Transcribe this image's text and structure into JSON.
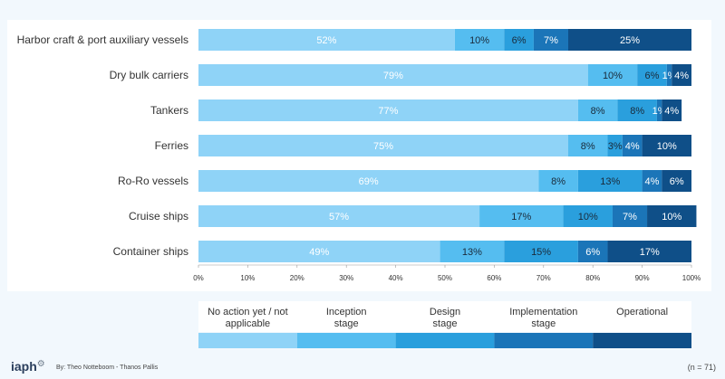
{
  "chart_data": {
    "type": "bar",
    "orientation": "horizontal",
    "stacked": true,
    "title": "",
    "xlabel": "",
    "ylabel": "",
    "xlim": [
      0,
      100
    ],
    "x_ticks": [
      "0%",
      "10%",
      "20%",
      "30%",
      "40%",
      "50%",
      "60%",
      "70%",
      "80%",
      "90%",
      "100%"
    ],
    "grid": false,
    "legend_position": "bottom",
    "categories": [
      "Harbor craft & port auxiliary vessels",
      "Dry bulk carriers",
      "Tankers",
      "Ferries",
      "Ro-Ro vessels",
      "Cruise ships",
      "Container ships"
    ],
    "series": [
      {
        "name": "No action yet / not applicable",
        "color": "#8fd3f7",
        "label_color": "#ffffff",
        "values": [
          52,
          79,
          77,
          75,
          69,
          57,
          49
        ],
        "labels": [
          "52%",
          "79%",
          "77%",
          "75%",
          "69%",
          "57%",
          "49%"
        ]
      },
      {
        "name": "Inception stage",
        "color": "#55bdf0",
        "label_color": "#1a2a3a",
        "values": [
          10,
          10,
          8,
          8,
          8,
          17,
          13
        ],
        "labels": [
          "10%",
          "10%",
          "8%",
          "8%",
          "8%",
          "17%",
          "13%"
        ]
      },
      {
        "name": "Design stage",
        "color": "#2a9fdd",
        "label_color": "#1a2a3a",
        "values": [
          6,
          6,
          8,
          3,
          13,
          10,
          15
        ],
        "labels": [
          "6%",
          "6%",
          "8%",
          "3%",
          "13%",
          "10%",
          "15%"
        ]
      },
      {
        "name": "Implementation stage",
        "color": "#1b75b8",
        "label_color": "#ffffff",
        "values": [
          7,
          1,
          1,
          4,
          4,
          7,
          6
        ],
        "labels": [
          "7%",
          "1%",
          "1%",
          "4%",
          "4%",
          "7%",
          "6%"
        ]
      },
      {
        "name": "Operational",
        "color": "#0f4f88",
        "label_color": "#ffffff",
        "values": [
          25,
          4,
          4,
          10,
          6,
          10,
          17
        ],
        "labels": [
          "25%",
          "4%",
          "4%",
          "10%",
          "6%",
          "10%",
          "17%"
        ]
      }
    ],
    "legend_labels": [
      [
        "No action yet / not",
        "applicable"
      ],
      [
        "Inception",
        "stage"
      ],
      [
        "Design",
        "stage"
      ],
      [
        "Implementation",
        "stage"
      ],
      [
        "Operational"
      ]
    ]
  },
  "footer": {
    "logo_text": "iaph",
    "logo_icon": "gear-icon",
    "credit": "By: Theo Notteboom - Thanos Pallis",
    "sample_size": "(n = 71)"
  }
}
